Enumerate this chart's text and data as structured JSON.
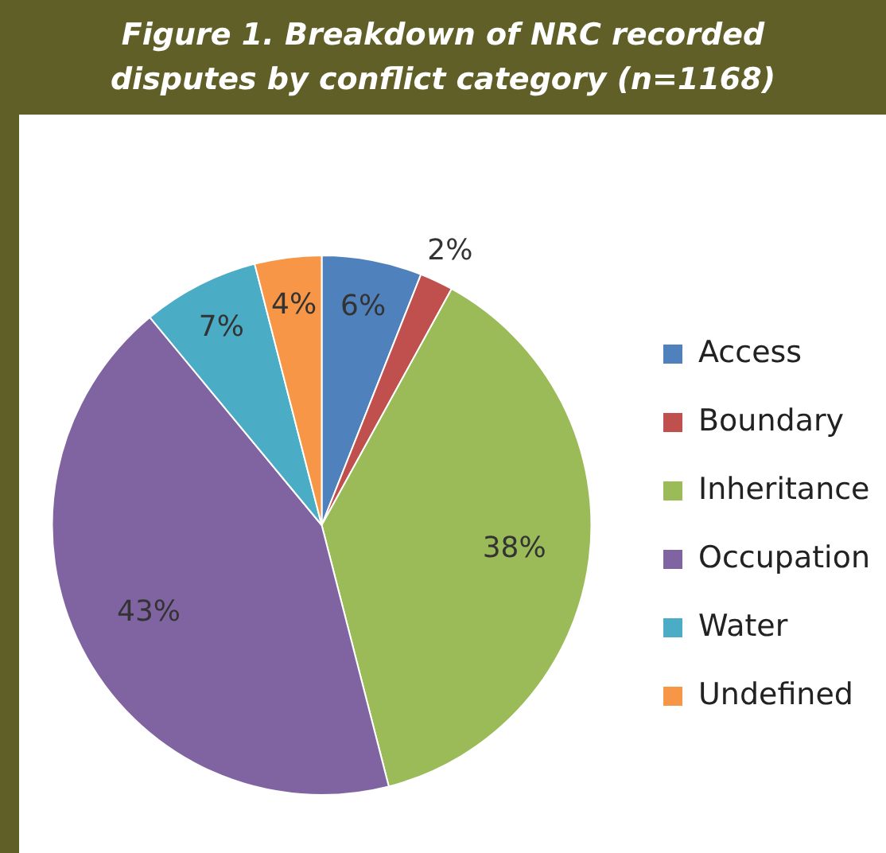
{
  "chart_data": {
    "type": "pie",
    "title": "Figure 1. Breakdown of NRC recorded disputes by conflict category (n=1168)",
    "categories": [
      "Access",
      "Boundary",
      "Inheritance",
      "Occupation",
      "Water",
      "Undefined"
    ],
    "values": [
      6,
      2,
      38,
      43,
      7,
      4
    ],
    "colors": [
      "#4f81bd",
      "#c0504d",
      "#9bbb59",
      "#8064a2",
      "#4bacc6",
      "#f79646"
    ],
    "value_labels": [
      "6%",
      "2%",
      "38%",
      "43%",
      "7%",
      "4%"
    ],
    "legend": "right"
  }
}
